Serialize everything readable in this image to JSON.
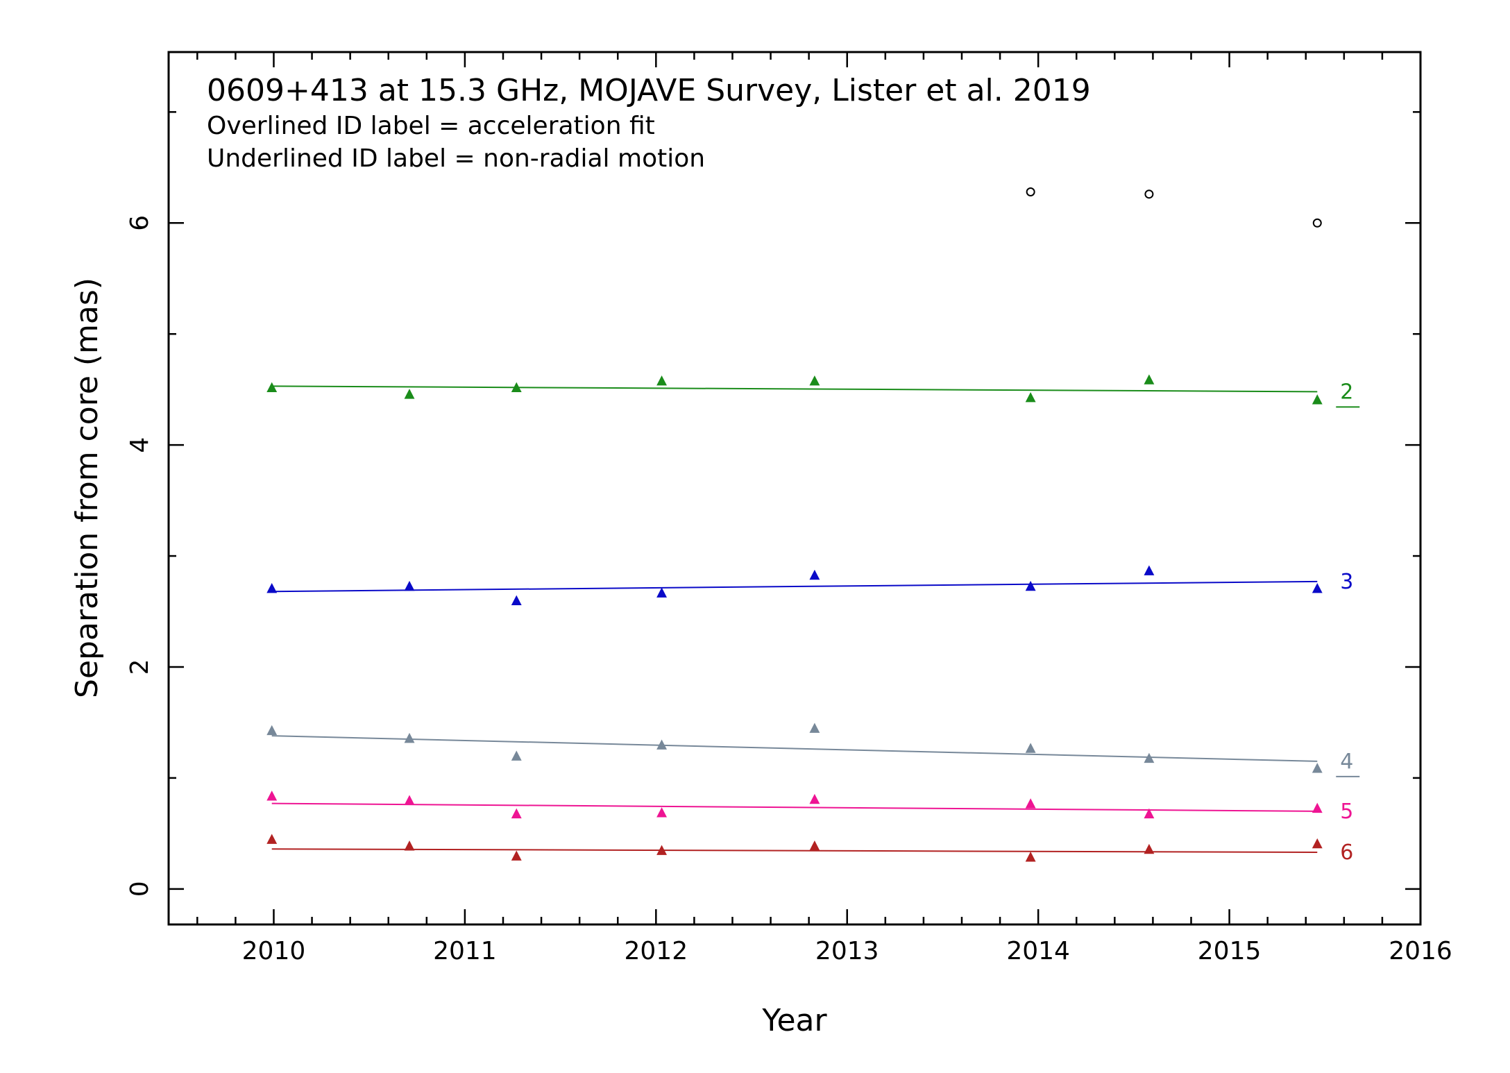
{
  "chart_data": {
    "type": "scatter",
    "title": "0609+413 at 15.3 GHz, MOJAVE Survey, Lister et al. 2019",
    "subtitle_lines": [
      "Overlined ID label = acceleration fit",
      "Underlined ID label = non-radial motion"
    ],
    "xlabel": "Year",
    "ylabel": "Separation from core (mas)",
    "xlim": [
      2009.45,
      2016.0
    ],
    "ylim": [
      -0.32,
      7.54
    ],
    "x_ticks": [
      2010,
      2011,
      2012,
      2013,
      2014,
      2015,
      2016
    ],
    "y_ticks": [
      0,
      2,
      4,
      6
    ],
    "epochs": [
      2009.99,
      2010.71,
      2011.27,
      2012.03,
      2012.83,
      2013.96,
      2014.58,
      2015.46
    ],
    "series": [
      {
        "name": "2",
        "color": "#1a8c1a",
        "label_decoration": "underline",
        "values": [
          4.51,
          4.45,
          4.51,
          4.57,
          4.57,
          4.42,
          4.58,
          4.4
        ],
        "fit": [
          [
            2009.99,
            4.53
          ],
          [
            2015.46,
            4.48
          ]
        ]
      },
      {
        "name": "3",
        "color": "#0a0ac8",
        "label_decoration": "none",
        "values": [
          2.7,
          2.72,
          2.59,
          2.66,
          2.82,
          2.72,
          2.86,
          2.7
        ],
        "fit": [
          [
            2009.99,
            2.68
          ],
          [
            2015.46,
            2.77
          ]
        ]
      },
      {
        "name": "4",
        "color": "#778899",
        "label_decoration": "underline",
        "values": [
          1.42,
          1.35,
          1.19,
          1.29,
          1.44,
          1.26,
          1.17,
          1.08
        ],
        "fit": [
          [
            2009.99,
            1.38
          ],
          [
            2015.46,
            1.15
          ]
        ]
      },
      {
        "name": "5",
        "color": "#ee1493",
        "label_decoration": "none",
        "values": [
          0.83,
          0.79,
          0.67,
          0.68,
          0.8,
          0.76,
          0.67,
          0.72
        ],
        "fit": [
          [
            2009.99,
            0.77
          ],
          [
            2015.46,
            0.7
          ]
        ]
      },
      {
        "name": "6",
        "color": "#b22222",
        "label_decoration": "none",
        "values": [
          0.44,
          0.38,
          0.29,
          0.34,
          0.38,
          0.28,
          0.35,
          0.4
        ],
        "fit": [
          [
            2009.99,
            0.36
          ],
          [
            2015.46,
            0.33
          ]
        ]
      }
    ],
    "unassociated_points": {
      "marker": "open-circle",
      "color": "#000000",
      "points": [
        [
          2013.96,
          6.28
        ],
        [
          2014.58,
          6.26
        ],
        [
          2015.46,
          6.0
        ]
      ]
    }
  }
}
